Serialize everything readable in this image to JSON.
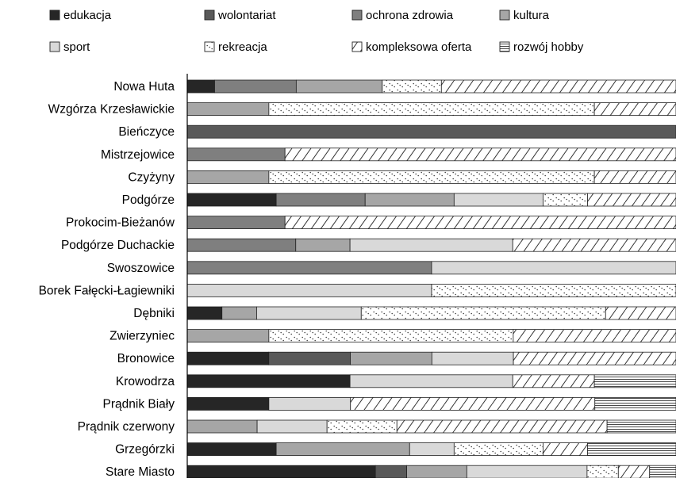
{
  "chart_data": {
    "type": "bar",
    "orientation": "horizontal",
    "stacked": "100%",
    "legend_position": "top",
    "grid": false,
    "categories": [
      "Nowa Huta",
      "Wzgórza Krzesławickie",
      "Bieńczyce",
      "Mistrzejowice",
      "Czyżyny",
      "Podgórze",
      "Prokocim-Bieżanów",
      "Podgórze Duchackie",
      "Swoszowice",
      "Borek Fałęcki-Łagiewniki",
      "Dębniki",
      "Zwierzyniec",
      "Bronowice",
      "Krowodrza",
      "Prądnik Biały",
      "Prądnik czerwony",
      "Grzegórzki",
      "Stare Miasto"
    ],
    "series": [
      {
        "name": "edukacja",
        "pattern": "solid",
        "color": "#262626",
        "values": [
          5.6,
          0,
          0,
          0,
          0,
          18.2,
          0,
          0,
          0,
          0,
          7.1,
          0,
          16.7,
          33.3,
          16.7,
          0,
          18.2,
          38.5
        ]
      },
      {
        "name": "wolontariat",
        "pattern": "solid",
        "color": "#595959",
        "values": [
          0,
          0,
          100,
          0,
          0,
          0,
          0,
          0,
          0,
          0,
          0,
          0,
          16.7,
          0,
          0,
          0,
          0,
          6.4
        ]
      },
      {
        "name": "ochrona zdrowia",
        "pattern": "solid",
        "color": "#7f7f7f",
        "values": [
          16.7,
          0,
          0,
          20,
          0,
          18.2,
          20,
          22.2,
          50,
          0,
          0,
          0,
          0,
          0,
          0,
          0,
          0,
          0
        ]
      },
      {
        "name": "kultura",
        "pattern": "solid",
        "color": "#a6a6a6",
        "values": [
          17.6,
          16.7,
          0,
          0,
          16.7,
          18.2,
          0,
          11.1,
          0,
          0,
          7.1,
          16.7,
          16.7,
          0,
          0,
          14.3,
          27.3,
          12.3
        ]
      },
      {
        "name": "sport",
        "pattern": "solid",
        "color": "#d9d9d9",
        "values": [
          0,
          0,
          0,
          0,
          0,
          18.2,
          0,
          33.3,
          50,
          50,
          21.4,
          0,
          16.7,
          33.3,
          16.7,
          14.3,
          9.1,
          24.6
        ]
      },
      {
        "name": "rekreacja",
        "pattern": "dotted",
        "color": "#ffffff",
        "values": [
          12.1,
          66.6,
          0,
          0,
          66.6,
          9.1,
          0,
          0,
          0,
          50,
          50,
          50,
          0,
          0,
          0,
          14.3,
          18.2,
          6.4
        ]
      },
      {
        "name": "kompleksowa oferta",
        "pattern": "diagonal",
        "color": "#ffffff",
        "values": [
          48,
          16.7,
          0,
          80,
          16.7,
          18.1,
          80,
          33.4,
          0,
          0,
          14.4,
          33.3,
          33.3,
          16.7,
          50,
          43,
          9.1,
          6.4
        ]
      },
      {
        "name": "rozwój hobby",
        "pattern": "horizontal",
        "color": "#ffffff",
        "values": [
          0,
          0,
          0,
          0,
          0,
          0,
          0,
          0,
          0,
          0,
          0,
          0,
          0,
          16.7,
          16.6,
          14.1,
          18.1,
          5.4
        ]
      }
    ]
  }
}
